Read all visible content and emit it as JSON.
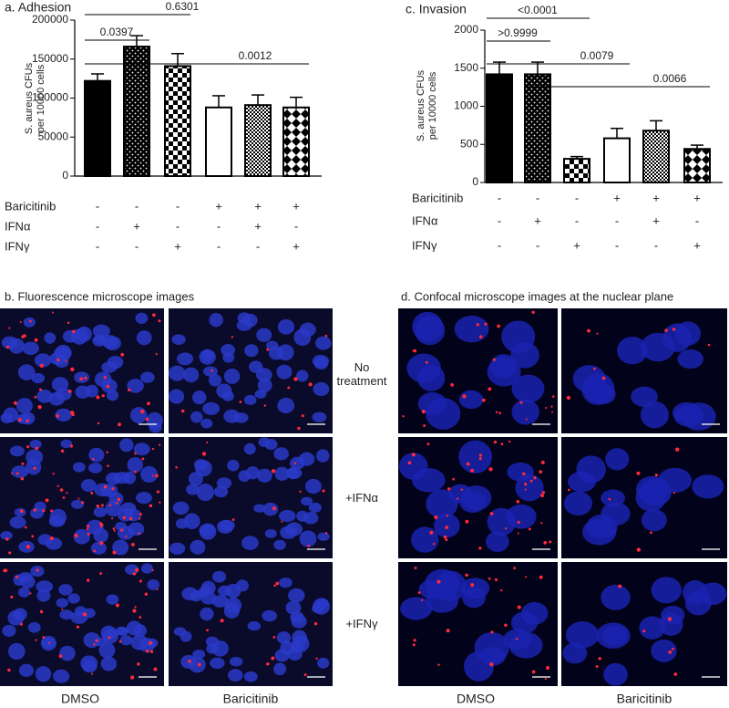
{
  "chart_data": [
    {
      "type": "bar",
      "title": "a. Adhesion",
      "ylabel": [
        "S. aureus CFUs",
        "per 10000 cells"
      ],
      "values": [
        122000,
        166000,
        141000,
        88000,
        91000,
        88000
      ],
      "errors": [
        9000,
        14000,
        16000,
        15000,
        13000,
        13000
      ],
      "fills": [
        "solid",
        "dots",
        "checker",
        "white",
        "fine-checker",
        "diamond"
      ],
      "ylim": [
        0,
        200000
      ],
      "yticks": [
        0,
        50000,
        100000,
        150000,
        200000
      ],
      "annotations": [
        "0.6301",
        "0.0397",
        "0.0012"
      ],
      "conditions": [
        {
          "name": "Baricitinib",
          "values": [
            "-",
            "-",
            "-",
            "+",
            "+",
            "+"
          ]
        },
        {
          "name": "IFNα",
          "values": [
            "-",
            "+",
            "-",
            "-",
            "+",
            "-"
          ]
        },
        {
          "name": "IFNγ",
          "values": [
            "-",
            "-",
            "+",
            "-",
            "-",
            "+"
          ]
        }
      ]
    },
    {
      "type": "bar",
      "title": "c. Invasion",
      "ylabel": [
        "S. aureus CFUs",
        "per 10000 cells"
      ],
      "values": [
        1420,
        1420,
        310,
        580,
        680,
        440
      ],
      "errors": [
        160,
        160,
        30,
        130,
        130,
        50
      ],
      "fills": [
        "solid",
        "dots",
        "checker",
        "white",
        "fine-checker",
        "diamond"
      ],
      "ylim": [
        0,
        2000
      ],
      "yticks": [
        0,
        500,
        1000,
        1500,
        2000
      ],
      "annotations": [
        "<0.0001",
        ">0.9999",
        "0.0079",
        "0.0066"
      ],
      "conditions": [
        {
          "name": "Baricitinib",
          "values": [
            "-",
            "-",
            "-",
            "+",
            "+",
            "+"
          ]
        },
        {
          "name": "IFNα",
          "values": [
            "-",
            "+",
            "-",
            "-",
            "+",
            "-"
          ]
        },
        {
          "name": "IFNγ",
          "values": [
            "-",
            "-",
            "+",
            "-",
            "-",
            "+"
          ]
        }
      ]
    }
  ],
  "images": [
    {
      "title": "b. Fluorescence microscope images",
      "columns": [
        "DMSO",
        "Baricitinib"
      ]
    },
    {
      "title": "d. Confocal microscope images at the nuclear plane",
      "columns": [
        "DMSO",
        "Baricitinib"
      ]
    }
  ],
  "row_labels": [
    "No treatment",
    "+IFNα",
    "+IFNγ"
  ]
}
